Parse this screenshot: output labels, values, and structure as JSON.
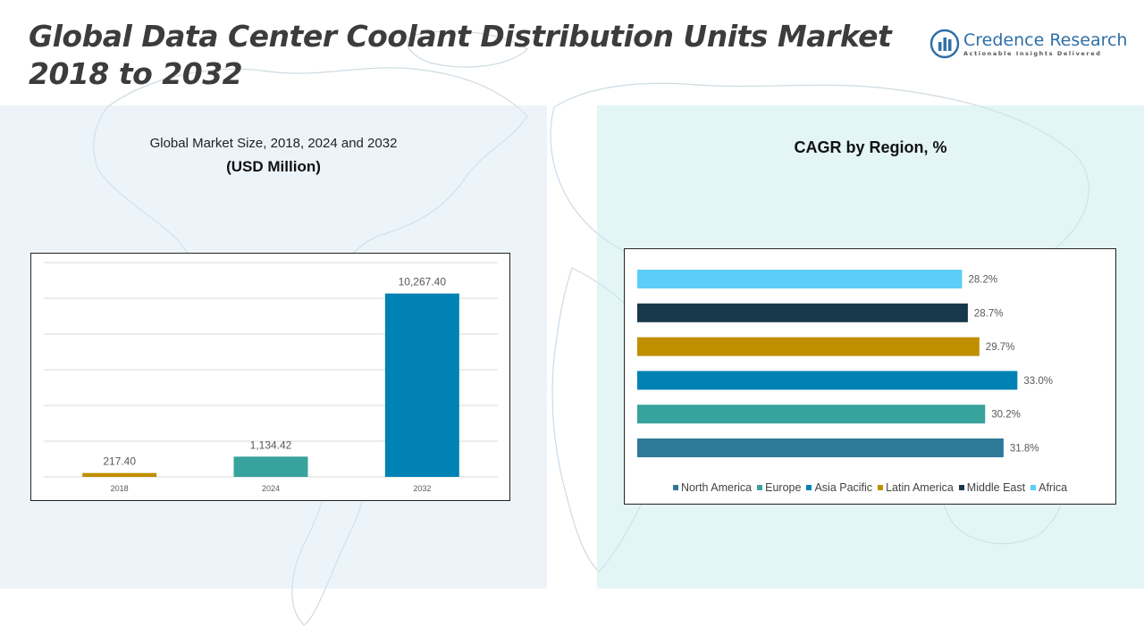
{
  "header": {
    "title_line1": "Global Data Center Coolant Distribution Units Market",
    "title_line2": "2018 to 2032"
  },
  "logo": {
    "name": "Credence Research",
    "tagline": "Actionable Insights Delivered"
  },
  "left_panel": {
    "subtitle": "Global Market Size, 2018, 2024 and 2032",
    "unit": "(USD Million)"
  },
  "right_panel": {
    "title": "CAGR by Region, %"
  },
  "chart_data": [
    {
      "type": "bar",
      "title": "Global Market Size, 2018, 2024 and 2032",
      "ylabel": "(USD Million)",
      "categories": [
        "2018",
        "2024",
        "2032"
      ],
      "values": [
        217.4,
        1134.42,
        10267.4
      ],
      "value_labels": [
        "217.40",
        "1,134.42",
        "10,267.40"
      ],
      "colors": [
        "#bf8f00",
        "#37a39c",
        "#0082b4"
      ],
      "ylim": [
        0,
        12000
      ],
      "grid": true
    },
    {
      "type": "bar",
      "orientation": "horizontal",
      "title": "CAGR by Region, %",
      "series": [
        {
          "name": "North America",
          "value": 31.8,
          "label": "31.8%",
          "color": "#2e7898"
        },
        {
          "name": "Europe",
          "value": 30.2,
          "label": "30.2%",
          "color": "#37a39c"
        },
        {
          "name": "Asia Pacific",
          "value": 33.0,
          "label": "33.0%",
          "color": "#0082b4"
        },
        {
          "name": "Latin America",
          "value": 29.7,
          "label": "29.7%",
          "color": "#bf8f00"
        },
        {
          "name": "Middle East",
          "value": 28.7,
          "label": "28.7%",
          "color": "#17384a"
        },
        {
          "name": "Africa",
          "value": 28.2,
          "label": "28.2%",
          "color": "#5ccdf9"
        }
      ],
      "xlim": [
        0,
        36
      ],
      "legend_position": "bottom",
      "grid": false
    }
  ]
}
